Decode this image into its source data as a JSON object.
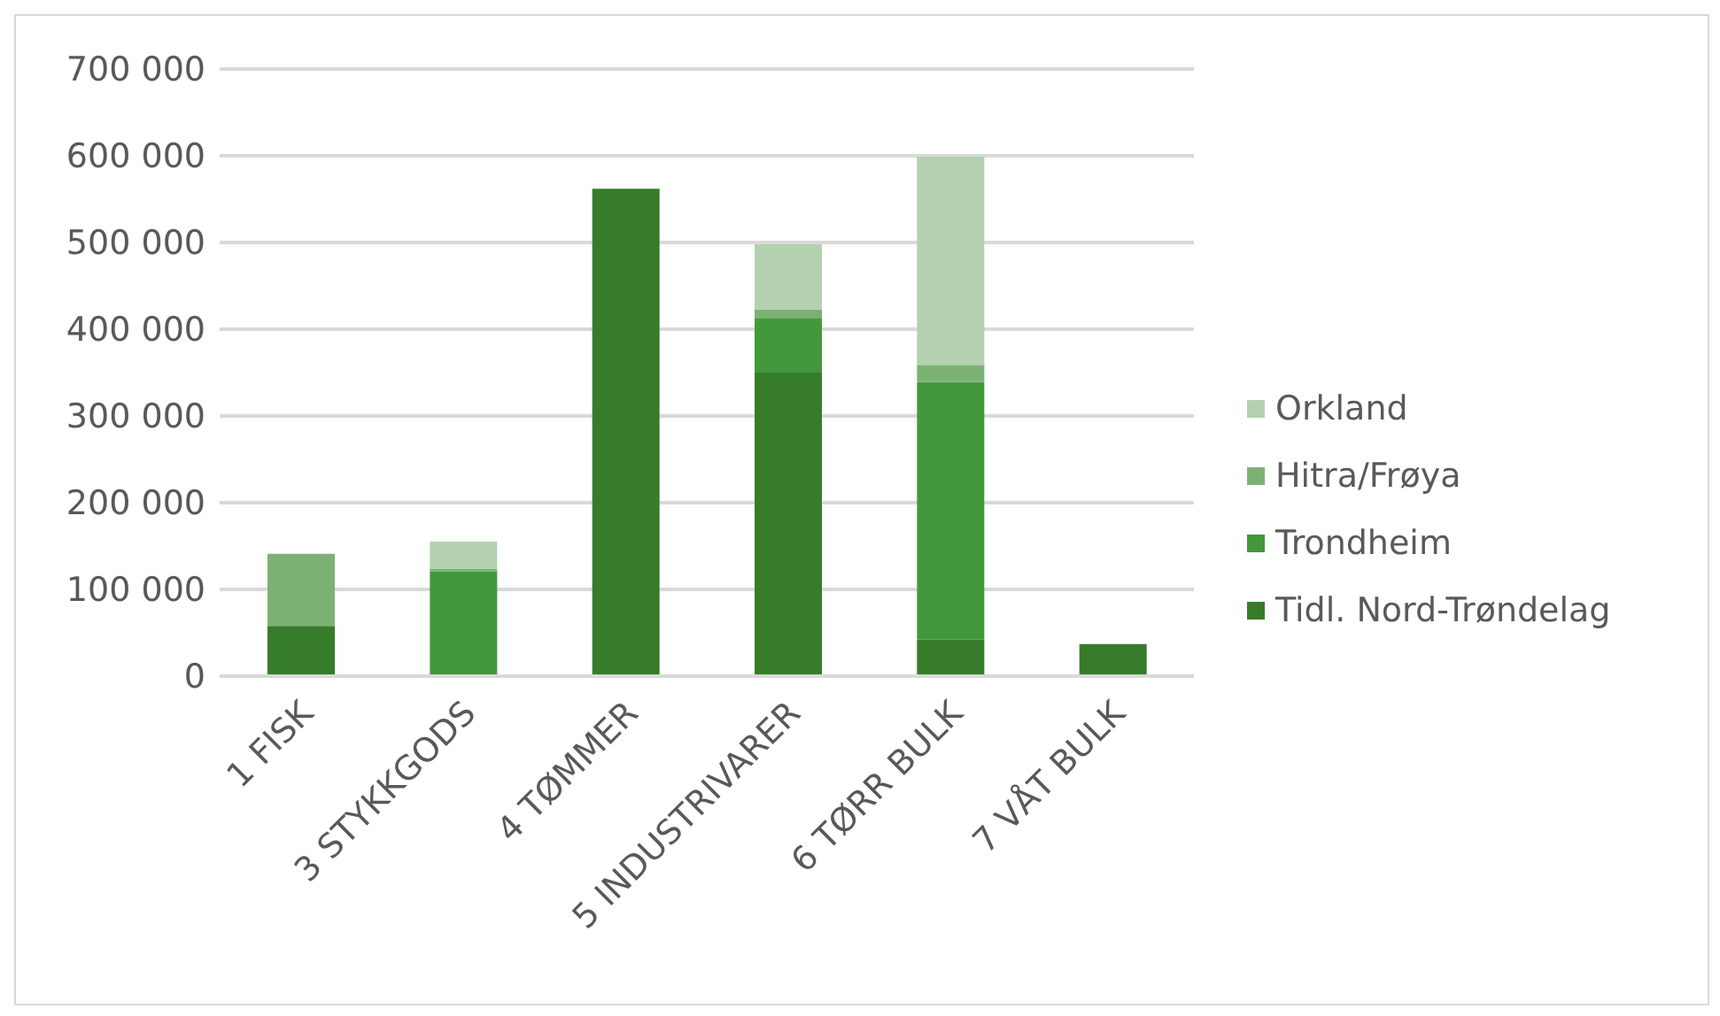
{
  "chart_data": {
    "type": "bar",
    "stacked": true,
    "categories": [
      "1 FISK",
      "3 STYKKGODS",
      "4 TØMMER",
      "5 INDUSTRIVARER",
      "6 TØRR BULK",
      "7 VÅT BULK"
    ],
    "series": [
      {
        "name": "Tidl. Nord-Trøndelag",
        "color": "#367c2b",
        "values": [
          58000,
          1000,
          562000,
          350000,
          42000,
          37000
        ]
      },
      {
        "name": "Trondheim",
        "color": "#43983b",
        "values": [
          0,
          120000,
          0,
          63000,
          297000,
          0
        ]
      },
      {
        "name": "Hitra/Frøya",
        "color": "#7bb274",
        "values": [
          83000,
          3000,
          0,
          10000,
          20000,
          0
        ]
      },
      {
        "name": "Orkland",
        "color": "#b3d1b0",
        "values": [
          0,
          31000,
          0,
          75000,
          240000,
          0
        ]
      }
    ],
    "ylim": [
      0,
      700000
    ],
    "yticks": [
      {
        "value": 0,
        "label": "0"
      },
      {
        "value": 100000,
        "label": "100 000"
      },
      {
        "value": 200000,
        "label": "200 000"
      },
      {
        "value": 300000,
        "label": "300 000"
      },
      {
        "value": 400000,
        "label": "400 000"
      },
      {
        "value": 500000,
        "label": "500 000"
      },
      {
        "value": 600000,
        "label": "600 000"
      },
      {
        "value": 700000,
        "label": "700 000"
      }
    ],
    "grid": "y",
    "legend": "right"
  }
}
